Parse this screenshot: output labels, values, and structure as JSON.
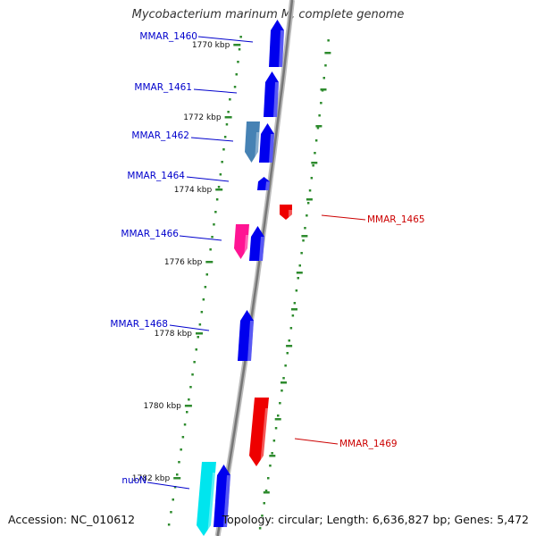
{
  "title": "Mycobacterium marinum M, complete genome",
  "footer": {
    "accession": "Accession: NC_010612",
    "topology": "Topology: circular; Length: 6,636,827 bp; Genes: 5,472"
  },
  "colors": {
    "forward_label": "#0000cc",
    "reverse_label": "#cc0000",
    "tick": "#2e8b2e",
    "backbone": "#999999"
  },
  "ticks": [
    "1770 kbp",
    "1772 kbp",
    "1774 kbp",
    "1776 kbp",
    "1778 kbp",
    "1780 kbp",
    "1782 kbp"
  ],
  "genes": [
    {
      "label": "MMAR_1460",
      "strand": "forward",
      "color": "#0000ee"
    },
    {
      "label": "MMAR_1461",
      "strand": "forward",
      "color": "#0000ee"
    },
    {
      "label": "MMAR_1462",
      "strand": "forward",
      "color": "#0000ee"
    },
    {
      "label": "",
      "strand": "forward",
      "color": "#4682b4"
    },
    {
      "label": "MMAR_1464",
      "strand": "forward",
      "color": "#0000ee"
    },
    {
      "label": "MMAR_1465",
      "strand": "reverse",
      "color": "#ee0000"
    },
    {
      "label": "MMAR_1466",
      "strand": "forward",
      "color": "#0000ee"
    },
    {
      "label": "",
      "strand": "forward",
      "color": "#ff1493"
    },
    {
      "label": "MMAR_1468",
      "strand": "forward",
      "color": "#0000ee"
    },
    {
      "label": "MMAR_1469",
      "strand": "reverse",
      "color": "#ee0000"
    },
    {
      "label": "nuoN",
      "strand": "forward",
      "color": "#0000ee"
    },
    {
      "label": "",
      "strand": "forward",
      "color": "#00e5ee"
    }
  ]
}
